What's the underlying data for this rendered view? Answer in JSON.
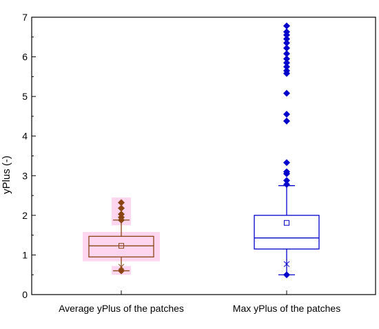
{
  "chart_data": {
    "type": "box",
    "title": "",
    "xlabel": "",
    "ylabel": "yPlus (-)",
    "ylim": [
      0,
      7
    ],
    "yticks": [
      "0",
      "1",
      "2",
      "3",
      "4",
      "5",
      "6",
      "7"
    ],
    "grid": false,
    "legend": "none",
    "categories": [
      "Average yPlus of the patches",
      "Max yPlus of the patches"
    ],
    "boxes": [
      {
        "category": "Average yPlus of the patches",
        "color": "#8B4513",
        "highlight": "#FFD6F0",
        "whisker_low": 0.6,
        "q1": 0.95,
        "median": 1.23,
        "q3": 1.47,
        "whisker_high": 1.88,
        "mean": 1.23,
        "min": 0.7,
        "outliers": [
          2.32,
          2.18,
          2.03,
          1.95,
          1.88,
          0.6
        ]
      },
      {
        "category": "Max yPlus of the patches",
        "color": "#0000CC",
        "highlight": "",
        "whisker_low": 0.5,
        "q1": 1.15,
        "median": 1.43,
        "q3": 2.0,
        "whisker_high": 2.75,
        "mean": 1.81,
        "min": 0.77,
        "outliers": [
          6.78,
          6.63,
          6.55,
          6.45,
          6.35,
          6.22,
          6.08,
          5.95,
          5.85,
          5.75,
          5.65,
          5.58,
          5.08,
          4.55,
          4.38,
          3.33,
          3.1,
          3.05,
          2.88,
          2.78,
          0.5
        ]
      }
    ]
  }
}
